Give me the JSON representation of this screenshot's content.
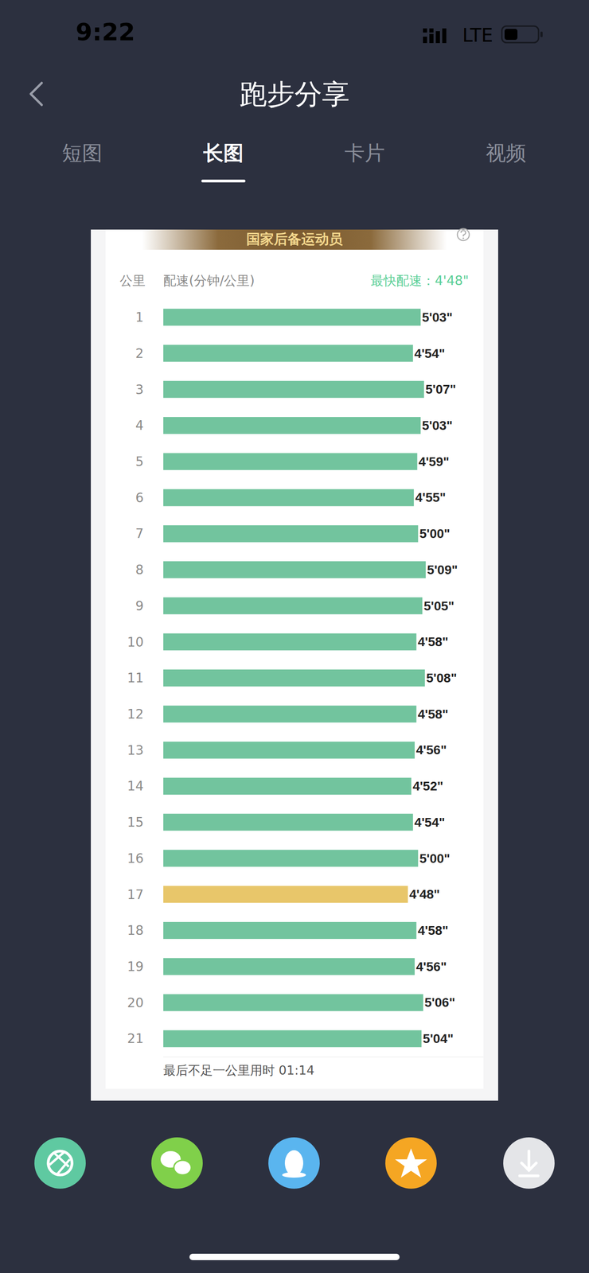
{
  "status_bar": {
    "time": "9:22",
    "network": "LTE"
  },
  "header": {
    "title": "跑步分享"
  },
  "tabs": {
    "items": [
      "短图",
      "长图",
      "卡片",
      "视频"
    ],
    "active": "长图"
  },
  "card": {
    "banner": "国家后备运动员",
    "footer": "最后不足一公里用时 01:14"
  },
  "chart_data": {
    "type": "bar",
    "orientation": "horizontal",
    "ylabel": "公里",
    "xlabel": "配速(分钟/公里)",
    "annotation": "最快配速：4'48\"",
    "categories": [
      "1",
      "2",
      "3",
      "4",
      "5",
      "6",
      "7",
      "8",
      "9",
      "10",
      "11",
      "12",
      "13",
      "14",
      "15",
      "16",
      "17",
      "18",
      "19",
      "20",
      "21"
    ],
    "values": [
      303,
      294,
      307,
      303,
      299,
      295,
      300,
      309,
      305,
      298,
      308,
      298,
      296,
      292,
      294,
      300,
      288,
      298,
      296,
      306,
      304
    ],
    "value_labels": [
      "5'03\"",
      "4'54\"",
      "5'07\"",
      "5'03\"",
      "4'59\"",
      "4'55\"",
      "5'00\"",
      "5'09\"",
      "5'05\"",
      "4'58\"",
      "5'08\"",
      "4'58\"",
      "4'56\"",
      "4'52\"",
      "4'54\"",
      "5'00\"",
      "4'48\"",
      "4'58\"",
      "4'56\"",
      "5'06\"",
      "5'04\""
    ],
    "colors": [
      "#72c49e",
      "#72c49e",
      "#72c49e",
      "#72c49e",
      "#72c49e",
      "#72c49e",
      "#72c49e",
      "#72c49e",
      "#72c49e",
      "#72c49e",
      "#72c49e",
      "#72c49e",
      "#72c49e",
      "#72c49e",
      "#72c49e",
      "#72c49e",
      "#e8c66a",
      "#72c49e",
      "#72c49e",
      "#72c49e",
      "#72c49e"
    ],
    "xlim": [
      0,
      377
    ],
    "data_labels": true,
    "tick_labels": "y",
    "grid": false
  }
}
